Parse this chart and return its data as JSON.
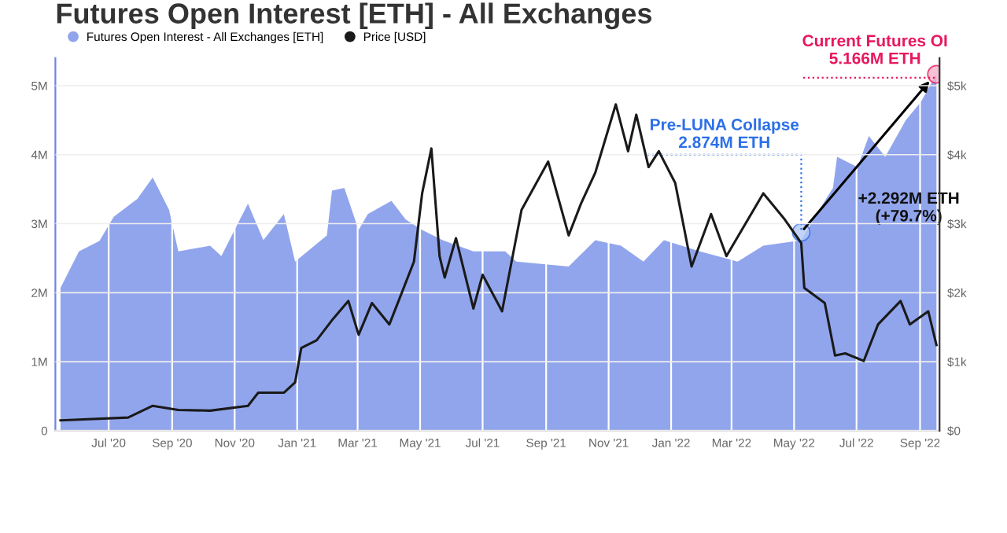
{
  "chart_data": {
    "type": "area",
    "title": "Futures Open Interest [ETH] - All Exchanges",
    "x": [
      "2020-05-15",
      "2020-06-02",
      "2020-06-22",
      "2020-07-06",
      "2020-07-29",
      "2020-08-13",
      "2020-08-29",
      "2020-09-07",
      "2020-10-08",
      "2020-10-19",
      "2020-11-14",
      "2020-11-29",
      "2020-12-19",
      "2020-12-30",
      "2021-01-30",
      "2021-02-04",
      "2021-02-16",
      "2021-03-02",
      "2021-03-11",
      "2021-04-03",
      "2021-04-17",
      "2021-05-03",
      "2021-05-23",
      "2021-06-22",
      "2021-07-23",
      "2021-08-03",
      "2021-09-23",
      "2021-10-19",
      "2021-11-13",
      "2021-12-05",
      "2021-12-25",
      "2022-01-29",
      "2022-03-07",
      "2022-04-01",
      "2022-05-08",
      "2022-05-23",
      "2022-06-08",
      "2022-06-12",
      "2022-07-02",
      "2022-07-13",
      "2022-07-29",
      "2022-08-18",
      "2022-09-02",
      "2022-09-17"
    ],
    "series": [
      {
        "name": "Futures Open Interest - All Exchanges [ETH]",
        "color": "#91a5ec",
        "values": [
          2.07,
          2.6,
          2.75,
          3.1,
          3.36,
          3.67,
          3.2,
          2.6,
          2.68,
          2.53,
          3.29,
          2.76,
          3.14,
          2.45,
          2.83,
          3.48,
          3.52,
          2.91,
          3.14,
          3.33,
          3.06,
          2.91,
          2.76,
          2.6,
          2.6,
          2.45,
          2.38,
          2.76,
          2.68,
          2.45,
          2.76,
          2.6,
          2.45,
          2.68,
          2.76,
          3.14,
          3.52,
          3.97,
          3.82,
          4.27,
          3.97,
          4.5,
          4.77,
          5.17
        ]
      },
      {
        "name": "Price [USD]",
        "type": "line",
        "axis": "y2",
        "color": "#1a1a1a",
        "x": [
          "2020-05-15",
          "2020-07-20",
          "2020-08-13",
          "2020-09-07",
          "2020-10-08",
          "2020-11-14",
          "2020-11-24",
          "2020-12-19",
          "2020-12-30",
          "2021-01-05",
          "2021-01-20",
          "2021-02-05",
          "2021-02-20",
          "2021-03-02",
          "2021-03-15",
          "2021-04-01",
          "2021-04-15",
          "2021-04-25",
          "2021-05-03",
          "2021-05-12",
          "2021-05-20",
          "2021-05-25",
          "2021-06-05",
          "2021-06-22",
          "2021-07-01",
          "2021-07-20",
          "2021-08-08",
          "2021-09-03",
          "2021-09-23",
          "2021-10-05",
          "2021-10-19",
          "2021-11-08",
          "2021-11-20",
          "2021-11-28",
          "2021-12-10",
          "2021-12-20",
          "2022-01-05",
          "2022-01-21",
          "2022-02-09",
          "2022-02-24",
          "2022-04-01",
          "2022-04-22",
          "2022-05-08",
          "2022-05-11",
          "2022-05-31",
          "2022-06-10",
          "2022-06-20",
          "2022-07-08",
          "2022-07-22",
          "2022-08-13",
          "2022-08-22",
          "2022-09-09",
          "2022-09-17"
        ],
        "values": [
          0.15,
          0.19,
          0.36,
          0.3,
          0.29,
          0.36,
          0.55,
          0.55,
          0.7,
          1.2,
          1.31,
          1.62,
          1.88,
          1.39,
          1.85,
          1.54,
          2.07,
          2.45,
          3.44,
          4.09,
          2.53,
          2.22,
          2.79,
          1.77,
          2.26,
          1.73,
          3.2,
          3.9,
          2.83,
          3.29,
          3.74,
          4.73,
          4.05,
          4.58,
          3.82,
          4.05,
          3.59,
          2.38,
          3.14,
          2.53,
          3.44,
          3.06,
          2.72,
          2.07,
          1.85,
          1.09,
          1.12,
          1.01,
          1.54,
          1.88,
          1.54,
          1.73,
          1.24
        ]
      }
    ],
    "xlim": [
      "2020-05-10",
      "2022-09-20"
    ],
    "xticks": [
      {
        "value": "2020-07-01",
        "label": "Jul '20"
      },
      {
        "value": "2020-09-01",
        "label": "Sep '20"
      },
      {
        "value": "2020-11-01",
        "label": "Nov '20"
      },
      {
        "value": "2021-01-01",
        "label": "Jan '21"
      },
      {
        "value": "2021-03-01",
        "label": "Mar '21"
      },
      {
        "value": "2021-05-01",
        "label": "May '21"
      },
      {
        "value": "2021-07-01",
        "label": "Jul '21"
      },
      {
        "value": "2021-09-01",
        "label": "Sep '21"
      },
      {
        "value": "2021-11-01",
        "label": "Nov '21"
      },
      {
        "value": "2022-01-01",
        "label": "Jan '22"
      },
      {
        "value": "2022-03-01",
        "label": "Mar '22"
      },
      {
        "value": "2022-05-01",
        "label": "May '22"
      },
      {
        "value": "2022-07-01",
        "label": "Jul '22"
      },
      {
        "value": "2022-09-01",
        "label": "Sep '22"
      }
    ],
    "ylim": [
      0,
      5.4
    ],
    "yticks": [
      0,
      {
        "value": 1,
        "label": "1M"
      },
      {
        "value": 2,
        "label": "2M"
      },
      {
        "value": 3,
        "label": "3M"
      },
      {
        "value": 4,
        "label": "4M"
      },
      {
        "value": 5,
        "label": "5M"
      }
    ],
    "y2lim": [
      0,
      5.4
    ],
    "y2ticks": [
      {
        "value": 0,
        "label": "$0"
      },
      {
        "value": 1,
        "label": "$1k"
      },
      {
        "value": 2,
        "label": "$2k"
      },
      {
        "value": 3,
        "label": "$3k"
      },
      {
        "value": 4,
        "label": "$4k"
      },
      {
        "value": 5,
        "label": "$5k"
      }
    ],
    "annotations": [
      {
        "text": "Current Futures OI\n5.166M ETH",
        "x": "2022-09-17",
        "y": 5.166
      },
      {
        "text": "Pre-LUNA Collapse\n2.874M ETH",
        "x": "2022-05-08",
        "y": 2.874
      },
      {
        "text": "+2.292M ETH\n(+79.7%)"
      }
    ],
    "grid": true,
    "legend": "top left"
  }
}
